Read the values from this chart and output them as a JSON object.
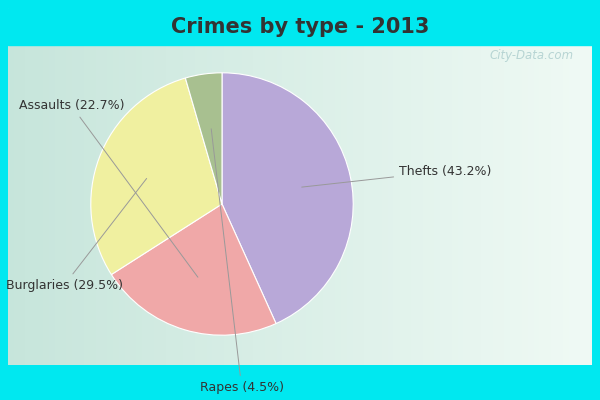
{
  "title": "Crimes by type - 2013",
  "slices": [
    {
      "label": "Thefts",
      "pct": "43.2%",
      "value": 43.2,
      "color": "#b8a8d8"
    },
    {
      "label": "Assaults",
      "pct": "22.7%",
      "value": 22.7,
      "color": "#f0a8a8"
    },
    {
      "label": "Burglaries",
      "pct": "29.5%",
      "value": 29.5,
      "color": "#f0f0a0"
    },
    {
      "label": "Rapes",
      "pct": "4.5%",
      "value": 4.5,
      "color": "#a8c090"
    }
  ],
  "border_color": "#00e8f0",
  "bg_top": "#00e8f0",
  "title_color": "#333333",
  "title_fontsize": 15,
  "label_fontsize": 9,
  "watermark": "City-Data.com",
  "startangle": 90,
  "border_width": 8
}
